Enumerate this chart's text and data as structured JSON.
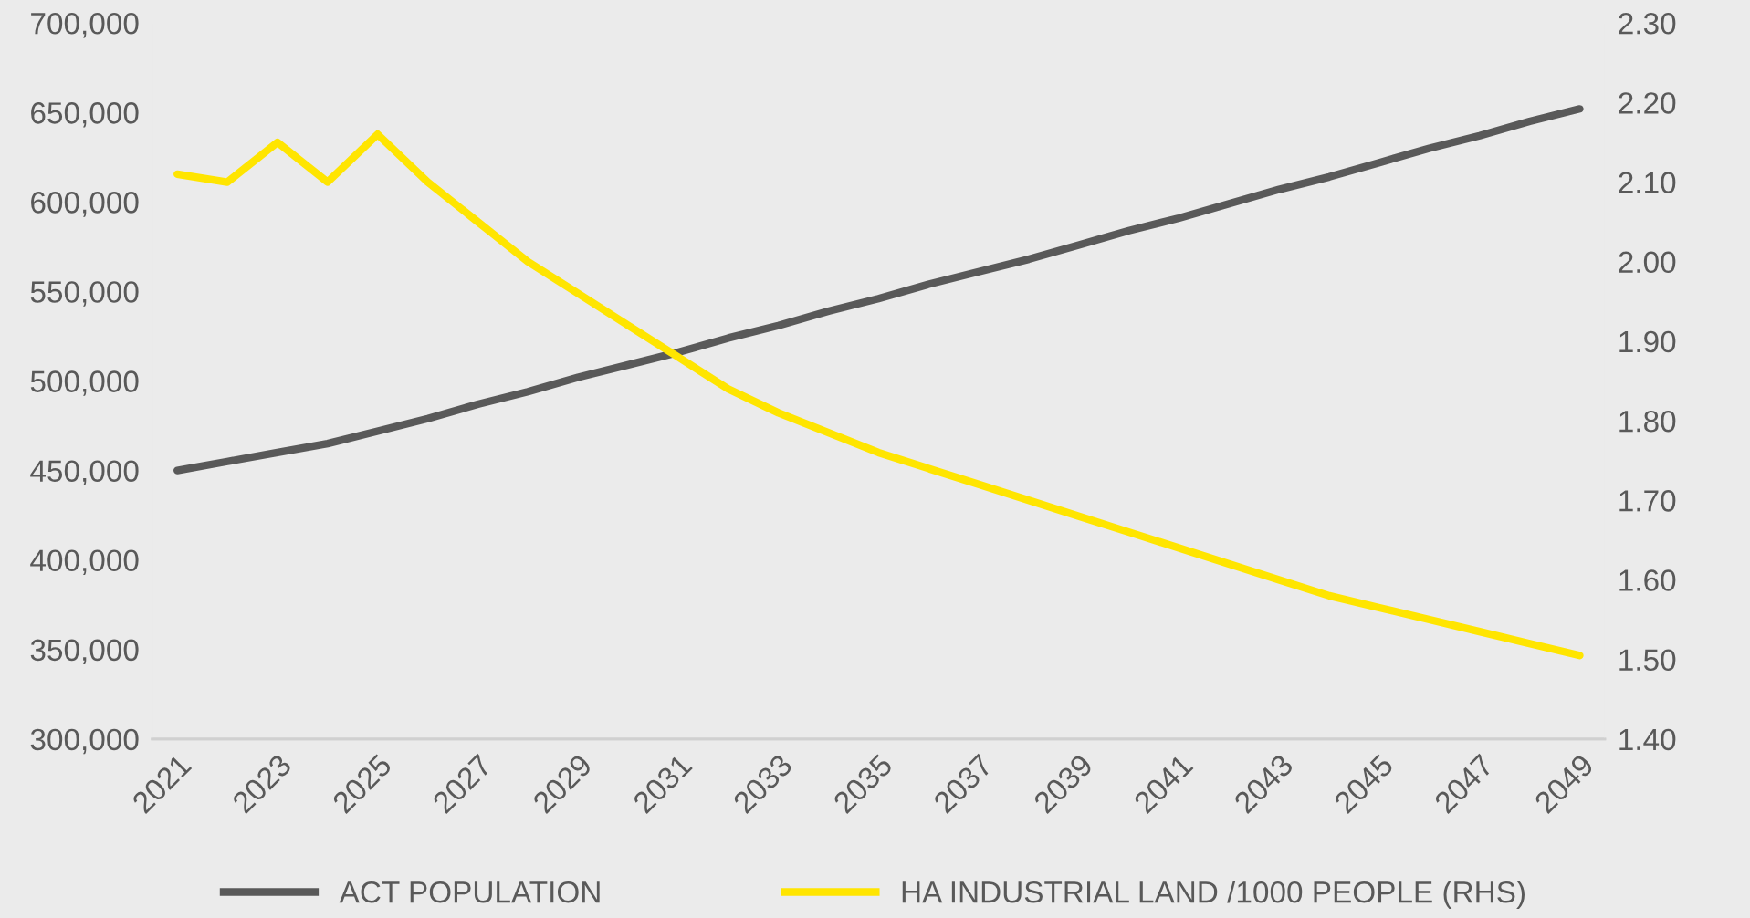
{
  "chart_data": {
    "type": "line",
    "categories": [
      "2021",
      null,
      "2023",
      null,
      "2025",
      null,
      "2027",
      null,
      "2029",
      null,
      "2031",
      null,
      "2033",
      null,
      "2035",
      null,
      "2037",
      null,
      "2039",
      null,
      "2041",
      null,
      "2043",
      null,
      "2045",
      null,
      "2047",
      null,
      "2049"
    ],
    "series": [
      {
        "name": "ACT POPULATION",
        "color": "#595959",
        "values": [
          450000,
          455000,
          460000,
          465000,
          472000,
          479000,
          487000,
          494000,
          502000,
          509000,
          516000,
          524000,
          531000,
          539000,
          546000,
          554000,
          561000,
          568000,
          576000,
          584000,
          591000,
          599000,
          607000,
          614000,
          622000,
          630000,
          637000,
          645000,
          652000
        ]
      },
      {
        "name": "HA INDUSTRIAL LAND /1000 PEOPLE (RHS)",
        "color": "#ffe500",
        "axis": "y2",
        "values": [
          2.11,
          2.1,
          2.15,
          2.1,
          2.16,
          2.1,
          2.05,
          2.0,
          1.96,
          1.92,
          1.88,
          1.84,
          1.81,
          1.785,
          1.76,
          1.74,
          1.72,
          1.7,
          1.68,
          1.66,
          1.64,
          1.62,
          1.6,
          1.58,
          1.565,
          1.55,
          1.535,
          1.52,
          1.505
        ]
      }
    ],
    "ylim": [
      300000,
      700000
    ],
    "yticks": [
      {
        "value": 300000,
        "label": "300,000"
      },
      {
        "value": 350000,
        "label": "350,000"
      },
      {
        "value": 400000,
        "label": "400,000"
      },
      {
        "value": 450000,
        "label": "450,000"
      },
      {
        "value": 500000,
        "label": "500,000"
      },
      {
        "value": 550000,
        "label": "550,000"
      },
      {
        "value": 600000,
        "label": "600,000"
      },
      {
        "value": 650000,
        "label": "650,000"
      },
      {
        "value": 700000,
        "label": "700,000"
      }
    ],
    "y2lim": [
      1.4,
      2.3
    ],
    "y2ticks": [
      {
        "value": 1.4,
        "label": "1.40"
      },
      {
        "value": 1.5,
        "label": "1.50"
      },
      {
        "value": 1.6,
        "label": "1.60"
      },
      {
        "value": 1.7,
        "label": "1.70"
      },
      {
        "value": 1.8,
        "label": "1.80"
      },
      {
        "value": 1.9,
        "label": "1.90"
      },
      {
        "value": 2.0,
        "label": "2.00"
      },
      {
        "value": 2.1,
        "label": "2.10"
      },
      {
        "value": 2.2,
        "label": "2.20"
      },
      {
        "value": 2.3,
        "label": "2.30"
      }
    ],
    "grid": false,
    "legend": "bottom",
    "marker": "none",
    "line_style": "solid"
  }
}
